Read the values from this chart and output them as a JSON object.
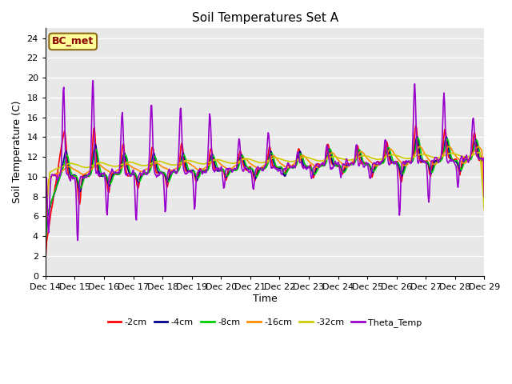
{
  "title": "Soil Temperatures Set A",
  "xlabel": "Time",
  "ylabel": "Soil Temperature (C)",
  "ylim": [
    0,
    25
  ],
  "yticks": [
    0,
    2,
    4,
    6,
    8,
    10,
    12,
    14,
    16,
    18,
    20,
    22,
    24
  ],
  "xtick_labels": [
    "Dec 14",
    "Dec 15",
    "Dec 16",
    "Dec 17",
    "Dec 18",
    "Dec 19",
    "Dec 20",
    "Dec 21",
    "Dec 22",
    "Dec 23",
    "Dec 24",
    "Dec 25",
    "Dec 26",
    "Dec 27",
    "Dec 28",
    "Dec 29"
  ],
  "annotation_text": "BC_met",
  "annotation_color": "#8B0000",
  "annotation_bg": "#FFFF99",
  "series_colors": [
    "#FF0000",
    "#00008B",
    "#00CC00",
    "#FF8C00",
    "#CCCC00",
    "#9900CC"
  ],
  "series_labels": [
    "-2cm",
    "-4cm",
    "-8cm",
    "-16cm",
    "-32cm",
    "Theta_Temp"
  ],
  "series_linewidths": [
    1.2,
    1.2,
    1.2,
    1.2,
    1.2,
    1.2
  ],
  "bg_color": "#E8E8E8",
  "fig_bg": "#FFFFFF",
  "grid_color": "#FFFFFF",
  "grid_linewidth": 1.0,
  "legend_ncol": 6,
  "n_points": 720
}
